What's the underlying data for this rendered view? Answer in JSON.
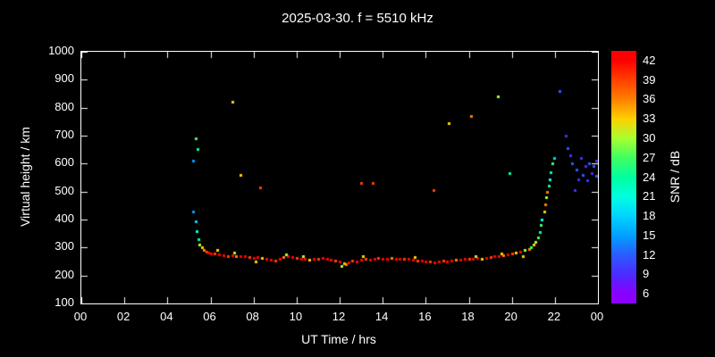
{
  "chart_data": {
    "type": "scatter",
    "title": "2025-03-30. f = 5510 kHz",
    "xlabel": "UT Time / hrs",
    "ylabel": "Virtual height / km",
    "xlim": [
      0,
      24
    ],
    "ylim": [
      100,
      1000
    ],
    "grid": false,
    "x_tick_labels": [
      "00",
      "02",
      "04",
      "06",
      "08",
      "10",
      "12",
      "14",
      "16",
      "18",
      "20",
      "22",
      "00"
    ],
    "y_tick_values": [
      100,
      200,
      300,
      400,
      500,
      600,
      700,
      800,
      900,
      1000
    ],
    "colorbar": {
      "label": "SNR / dB",
      "levels": [
        6,
        9,
        12,
        15,
        18,
        21,
        24,
        27,
        30,
        33,
        36,
        39,
        42
      ],
      "palette": [
        "#8a00ff",
        "#4b2bff",
        "#2b5bff",
        "#00a0ff",
        "#00d4ff",
        "#00ffe0",
        "#00ffa0",
        "#40ff60",
        "#a8ff30",
        "#ffd000",
        "#ff8000",
        "#ff4000",
        "#ff0000"
      ],
      "value_range": [
        4.5,
        43.5
      ]
    },
    "points": [
      [
        5.2,
        430,
        15
      ],
      [
        5.3,
        395,
        18
      ],
      [
        5.35,
        360,
        21
      ],
      [
        5.45,
        330,
        24
      ],
      [
        5.5,
        310,
        30
      ],
      [
        5.6,
        300,
        33
      ],
      [
        5.7,
        290,
        36
      ],
      [
        5.8,
        285,
        39
      ],
      [
        5.9,
        282,
        42
      ],
      [
        6.0,
        280,
        42
      ],
      [
        6.2,
        278,
        39
      ],
      [
        6.4,
        275,
        42
      ],
      [
        6.6,
        272,
        42
      ],
      [
        6.8,
        270,
        39
      ],
      [
        7.0,
        272,
        42
      ],
      [
        7.2,
        270,
        36
      ],
      [
        7.4,
        268,
        42
      ],
      [
        7.6,
        270,
        42
      ],
      [
        7.8,
        265,
        39
      ],
      [
        8.0,
        262,
        42
      ],
      [
        8.2,
        265,
        42
      ],
      [
        8.4,
        262,
        33
      ],
      [
        8.6,
        258,
        42
      ],
      [
        8.8,
        255,
        42
      ],
      [
        9.0,
        252,
        39
      ],
      [
        9.2,
        258,
        42
      ],
      [
        9.4,
        265,
        36
      ],
      [
        9.6,
        268,
        42
      ],
      [
        9.8,
        265,
        42
      ],
      [
        10.0,
        262,
        39
      ],
      [
        10.2,
        260,
        42
      ],
      [
        10.4,
        258,
        42
      ],
      [
        10.6,
        255,
        33
      ],
      [
        10.8,
        258,
        42
      ],
      [
        11.0,
        260,
        39
      ],
      [
        11.2,
        262,
        42
      ],
      [
        11.4,
        258,
        42
      ],
      [
        11.6,
        255,
        42
      ],
      [
        11.8,
        252,
        39
      ],
      [
        12.0,
        250,
        42
      ],
      [
        12.2,
        245,
        33
      ],
      [
        12.4,
        248,
        42
      ],
      [
        12.6,
        252,
        39
      ],
      [
        12.8,
        250,
        42
      ],
      [
        13.0,
        255,
        42
      ],
      [
        13.2,
        258,
        39
      ],
      [
        13.4,
        255,
        42
      ],
      [
        13.6,
        260,
        42
      ],
      [
        13.8,
        262,
        39
      ],
      [
        14.0,
        260,
        42
      ],
      [
        14.2,
        258,
        42
      ],
      [
        14.4,
        262,
        36
      ],
      [
        14.6,
        260,
        42
      ],
      [
        14.8,
        258,
        42
      ],
      [
        15.0,
        260,
        39
      ],
      [
        15.2,
        258,
        42
      ],
      [
        15.4,
        255,
        42
      ],
      [
        15.6,
        253,
        39
      ],
      [
        15.8,
        252,
        42
      ],
      [
        16.0,
        250,
        42
      ],
      [
        16.2,
        250,
        39
      ],
      [
        16.4,
        248,
        42
      ],
      [
        16.6,
        250,
        42
      ],
      [
        16.8,
        252,
        39
      ],
      [
        17.0,
        250,
        42
      ],
      [
        17.2,
        252,
        42
      ],
      [
        17.4,
        255,
        36
      ],
      [
        17.6,
        255,
        42
      ],
      [
        17.8,
        258,
        42
      ],
      [
        18.0,
        258,
        39
      ],
      [
        18.2,
        260,
        42
      ],
      [
        18.4,
        262,
        42
      ],
      [
        18.6,
        260,
        33
      ],
      [
        18.8,
        262,
        42
      ],
      [
        19.0,
        265,
        39
      ],
      [
        19.2,
        268,
        42
      ],
      [
        19.4,
        270,
        42
      ],
      [
        19.6,
        272,
        36
      ],
      [
        19.8,
        275,
        42
      ],
      [
        20.0,
        278,
        39
      ],
      [
        20.2,
        282,
        33
      ],
      [
        20.4,
        285,
        42
      ],
      [
        20.6,
        290,
        30
      ],
      [
        20.8,
        295,
        36
      ],
      [
        20.9,
        300,
        27
      ],
      [
        21.0,
        310,
        33
      ],
      [
        21.1,
        320,
        30
      ],
      [
        21.2,
        335,
        27
      ],
      [
        21.3,
        355,
        24
      ],
      [
        21.35,
        380,
        27
      ],
      [
        21.4,
        400,
        21
      ],
      [
        21.5,
        430,
        33
      ],
      [
        21.55,
        455,
        36
      ],
      [
        21.6,
        480,
        30
      ],
      [
        21.65,
        500,
        36
      ],
      [
        21.7,
        520,
        24
      ],
      [
        21.75,
        545,
        21
      ],
      [
        21.8,
        570,
        24
      ],
      [
        21.9,
        600,
        27
      ],
      [
        21.95,
        620,
        18
      ],
      [
        6.3,
        290,
        33
      ],
      [
        7.1,
        282,
        30
      ],
      [
        8.1,
        250,
        33
      ],
      [
        9.5,
        275,
        30
      ],
      [
        10.3,
        270,
        30
      ],
      [
        12.1,
        235,
        30
      ],
      [
        12.3,
        240,
        36
      ],
      [
        13.1,
        268,
        33
      ],
      [
        15.5,
        265,
        33
      ],
      [
        18.3,
        270,
        30
      ],
      [
        19.5,
        280,
        33
      ],
      [
        20.5,
        270,
        33
      ],
      [
        5.2,
        610,
        15
      ],
      [
        5.3,
        690,
        27
      ],
      [
        5.4,
        652,
        24
      ],
      [
        7.0,
        820,
        33
      ],
      [
        7.4,
        560,
        33
      ],
      [
        8.3,
        515,
        39
      ],
      [
        13.0,
        530,
        39
      ],
      [
        13.55,
        530,
        39
      ],
      [
        16.35,
        505,
        39
      ],
      [
        17.05,
        745,
        33
      ],
      [
        18.1,
        770,
        36
      ],
      [
        19.35,
        840,
        30
      ],
      [
        19.9,
        565,
        24
      ],
      [
        22.2,
        860,
        12
      ],
      [
        22.5,
        700,
        9
      ],
      [
        22.6,
        655,
        12
      ],
      [
        22.7,
        630,
        9
      ],
      [
        22.8,
        600,
        12
      ],
      [
        22.9,
        505,
        9
      ],
      [
        23.0,
        580,
        12
      ],
      [
        23.1,
        545,
        9
      ],
      [
        23.2,
        620,
        9
      ],
      [
        23.3,
        560,
        12
      ],
      [
        23.4,
        590,
        9
      ],
      [
        23.5,
        540,
        9
      ],
      [
        23.6,
        600,
        12
      ],
      [
        23.7,
        565,
        9
      ],
      [
        23.8,
        590,
        12
      ],
      [
        23.9,
        610,
        9
      ],
      [
        23.9,
        555,
        12
      ]
    ]
  }
}
